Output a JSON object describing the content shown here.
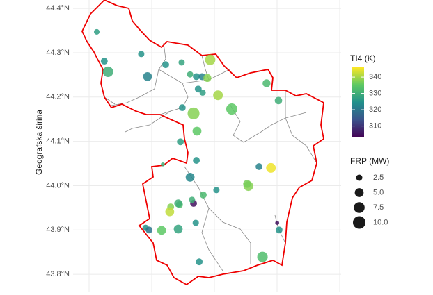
{
  "chart_data": {
    "type": "scatter",
    "y_label": "Geografska širina",
    "xlim": [
      16.4,
      17.4
    ],
    "ylim": [
      43.761,
      44.419
    ],
    "yticks": [
      {
        "value": 43.8,
        "label": "43.8°N"
      },
      {
        "value": 43.9,
        "label": "43.9°N"
      },
      {
        "value": 44.0,
        "label": "44.0°N"
      },
      {
        "value": 44.1,
        "label": "44.1°N"
      },
      {
        "value": 44.2,
        "label": "44.2°N"
      },
      {
        "value": 44.3,
        "label": "44.3°N"
      },
      {
        "value": 44.4,
        "label": "44.4°N"
      }
    ],
    "grid": true,
    "series": [
      {
        "name": "TI4 (K)",
        "x": [
          16.62,
          16.644,
          16.656,
          16.762,
          16.782,
          16.84,
          16.891,
          16.982,
          16.918,
          16.938,
          16.956,
          16.973,
          16.944,
          16.958,
          17.007,
          17.162,
          16.893,
          16.929,
          17.051,
          17.2,
          16.94,
          16.887,
          16.938,
          16.831,
          16.918,
          17.138,
          17.176,
          17.104,
          17.002,
          16.929,
          16.96,
          16.924,
          16.884,
          16.856,
          16.853,
          16.88,
          16.936,
          16.776,
          16.787,
          16.827,
          16.88,
          17.196,
          17.202,
          17.149,
          16.947,
          17.1
        ],
        "y": [
          44.347,
          44.281,
          44.257,
          44.297,
          44.246,
          44.273,
          44.278,
          44.284,
          44.251,
          44.246,
          44.246,
          44.243,
          44.218,
          44.21,
          44.204,
          44.231,
          44.176,
          44.163,
          44.173,
          44.192,
          44.123,
          44.099,
          44.057,
          44.048,
          44.019,
          44.043,
          44.04,
          43.999,
          43.99,
          43.96,
          43.979,
          43.968,
          43.957,
          43.952,
          43.941,
          43.96,
          43.916,
          43.905,
          43.9,
          43.899,
          43.902,
          43.916,
          43.9,
          43.839,
          43.828,
          44.004
        ],
        "ti4": [
          327,
          325,
          330,
          325,
          322,
          325,
          328,
          340,
          330,
          325,
          322,
          338,
          325,
          327,
          340,
          332,
          325,
          338,
          335,
          330,
          335,
          327,
          325,
          330,
          323,
          322,
          345,
          338,
          325,
          305,
          332,
          330,
          333,
          338,
          342,
          330,
          325,
          325,
          320,
          335,
          328,
          305,
          325,
          333,
          325,
          337
        ],
        "frp": [
          2,
          3,
          7,
          2.5,
          5,
          3,
          2.5,
          7,
          2.5,
          3,
          3,
          4,
          3,
          2.5,
          6,
          4,
          3,
          9,
          8,
          3.5,
          5,
          3,
          3,
          1,
          5,
          3,
          6,
          6,
          2.5,
          3,
          3,
          2.5,
          3,
          3,
          5,
          4,
          2.5,
          2.5,
          3,
          5,
          5,
          1,
          3,
          7,
          3,
          4
        ]
      }
    ],
    "color_label": "TI4 (K)",
    "clim": [
      303,
      346
    ],
    "cticks": [
      310,
      320,
      330,
      340
    ],
    "size_label": "FRP (MW)",
    "size_ticks": [
      2.5,
      {
        "value": 5,
        "label": "5.0"
      },
      {
        "value": 7.5,
        "label": "7.5"
      },
      {
        "value": 10,
        "label": "10.0"
      }
    ]
  }
}
